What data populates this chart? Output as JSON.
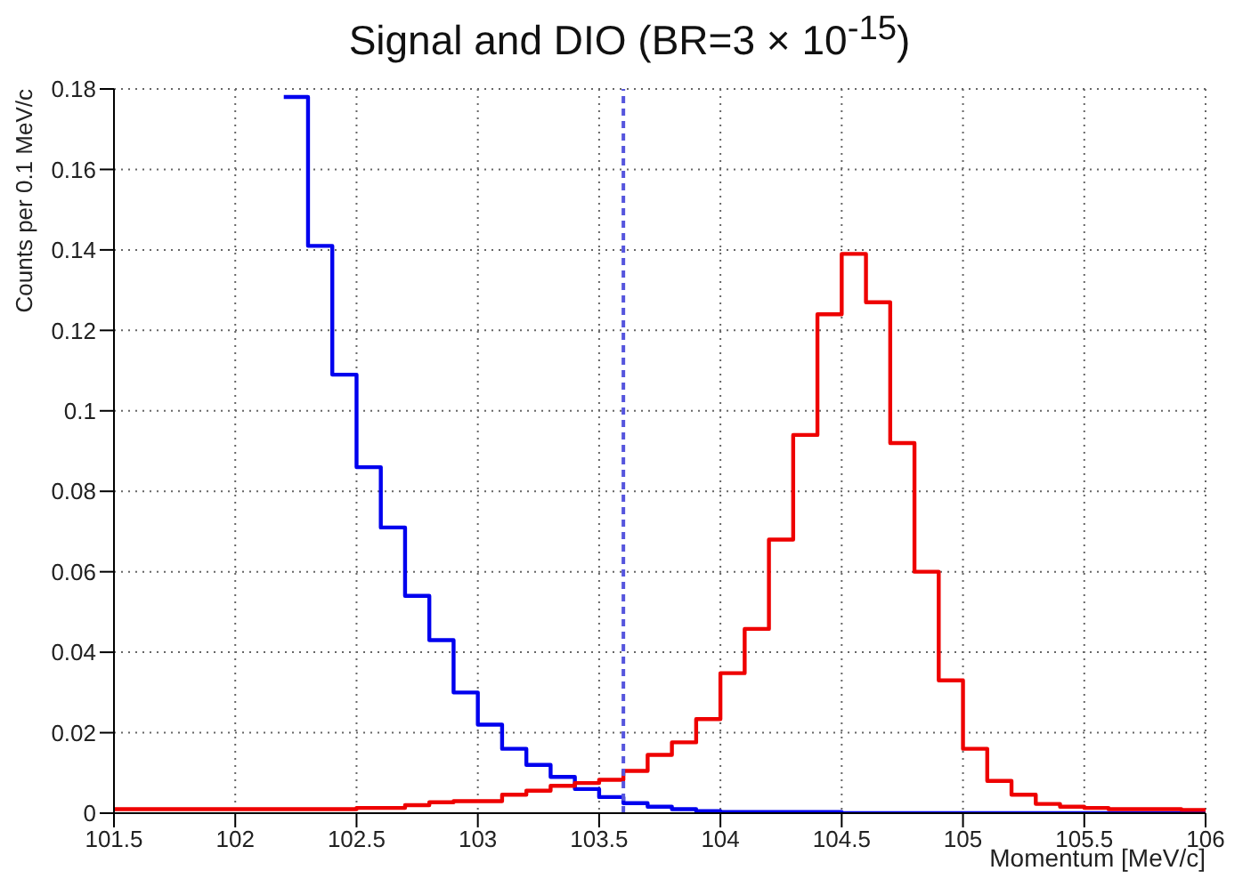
{
  "chart_data": {
    "type": "histogram",
    "title": "Signal and DIO (BR=3 × 10$^{-15}$)",
    "xlabel": "Momentum [MeV/c]",
    "ylabel": "Counts per 0.1 MeV/c",
    "bins": [
      101.5,
      101.6,
      101.7,
      101.8,
      101.9,
      102,
      102.1,
      102.2,
      102.3,
      102.4,
      102.5,
      102.6,
      102.7,
      102.8,
      102.9,
      103,
      103.1,
      103.2,
      103.3,
      103.4,
      103.5,
      103.6,
      103.7,
      103.8,
      103.9,
      104,
      104.1,
      104.2,
      104.3,
      104.4,
      104.5,
      104.6,
      104.7,
      104.8,
      104.9,
      105,
      105.1,
      105.2,
      105.3,
      105.4,
      105.5,
      105.6,
      105.7,
      105.8,
      105.9,
      106
    ],
    "series": [
      {
        "color": "#0000ee",
        "bins": [
          102.2,
          102.3,
          102.4,
          102.5,
          102.6,
          102.7,
          102.8,
          102.9,
          103,
          103.1,
          103.2,
          103.3,
          103.4,
          103.5,
          103.6,
          103.7,
          103.8,
          103.9,
          104,
          104.1,
          104.2,
          104.3,
          104.4,
          104.5,
          104.6,
          104.7,
          104.8,
          104.9,
          105,
          105.1,
          105.2,
          105.3,
          105.4,
          105.5,
          105.6,
          105.7,
          105.8,
          105.9,
          106
        ],
        "values": [
          0.178,
          0.141,
          0.109,
          0.086,
          0.071,
          0.054,
          0.043,
          0.03,
          0.022,
          0.016,
          0.012,
          0.009,
          0.006,
          0.004,
          0.0025,
          0.0016,
          0.001,
          0.0005,
          0.0003,
          0.0003,
          0.0003,
          0.0003,
          0.0003,
          0,
          0,
          0,
          0,
          0,
          0,
          0,
          0,
          0,
          0,
          0,
          0,
          0,
          0,
          0
        ]
      },
      {
        "color": "#ee0000",
        "values": [
          0.001,
          0.001,
          0.001,
          0.001,
          0.001,
          0.001,
          0.001,
          0.001,
          0.001,
          0.001,
          0.0013,
          0.0013,
          0.002,
          0.0027,
          0.003,
          0.003,
          0.0046,
          0.0056,
          0.0068,
          0.0075,
          0.0083,
          0.0105,
          0.0145,
          0.0176,
          0.0234,
          0.0348,
          0.0458,
          0.068,
          0.094,
          0.124,
          0.139,
          0.127,
          0.092,
          0.06,
          0.033,
          0.016,
          0.008,
          0.0046,
          0.0023,
          0.0016,
          0.0013,
          0.001,
          0.001,
          0.001,
          0.0008
        ]
      }
    ],
    "xlim": [
      101.5,
      106
    ],
    "xticks": [
      101.5,
      102,
      102.5,
      103,
      103.5,
      104,
      104.5,
      105,
      105.5,
      106
    ],
    "ylim": [
      0,
      0.18
    ],
    "yticks": [
      0,
      0.02,
      0.04,
      0.06,
      0.08,
      0.1,
      0.12,
      0.14,
      0.16,
      0.18
    ],
    "grid": true,
    "ref_lines": [
      {
        "axis": "x",
        "value": 103.6,
        "color": "#5555dd",
        "line_style": "dashed"
      }
    ]
  }
}
